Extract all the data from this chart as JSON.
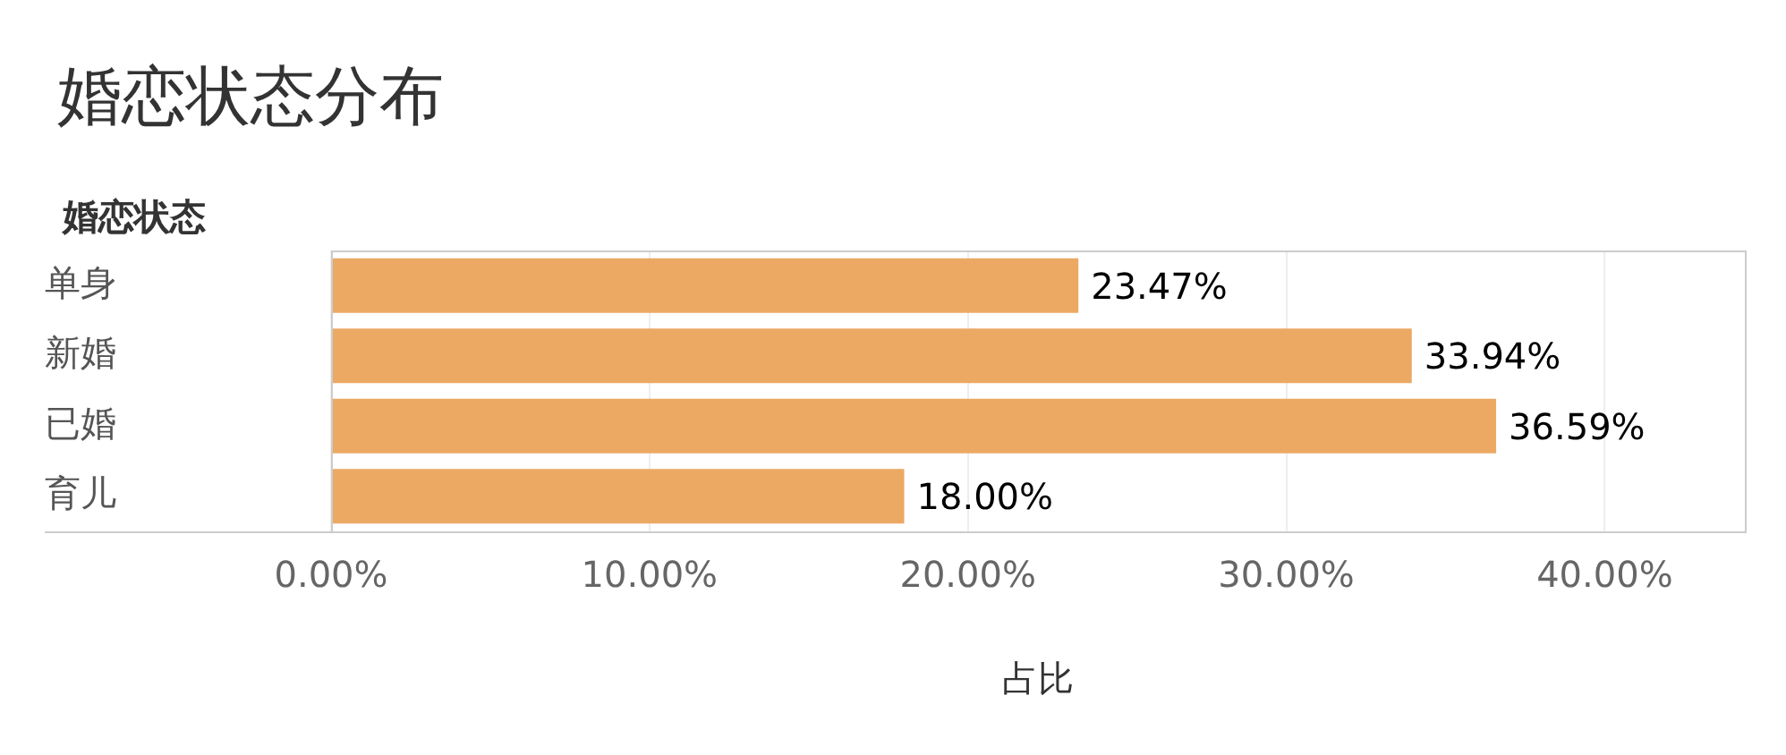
{
  "chart_data": {
    "type": "bar",
    "orientation": "horizontal",
    "title": "婚恋状态分布",
    "ylabel": "婚恋状态",
    "xlabel": "占比",
    "categories": [
      "单身",
      "新婚",
      "已婚",
      "育儿"
    ],
    "values": [
      23.47,
      33.94,
      36.59,
      18.0
    ],
    "value_labels": [
      "23.47%",
      "33.94%",
      "36.59%",
      "18.00%"
    ],
    "color": "#eba964",
    "xlim": [
      0,
      44.4
    ],
    "xticks": [
      {
        "value": 0,
        "label": "0.00%"
      },
      {
        "value": 10,
        "label": "10.00%"
      },
      {
        "value": 20,
        "label": "20.00%"
      },
      {
        "value": 30,
        "label": "30.00%"
      },
      {
        "value": 40,
        "label": "40.00%"
      }
    ],
    "grid": "x",
    "legend": false
  }
}
